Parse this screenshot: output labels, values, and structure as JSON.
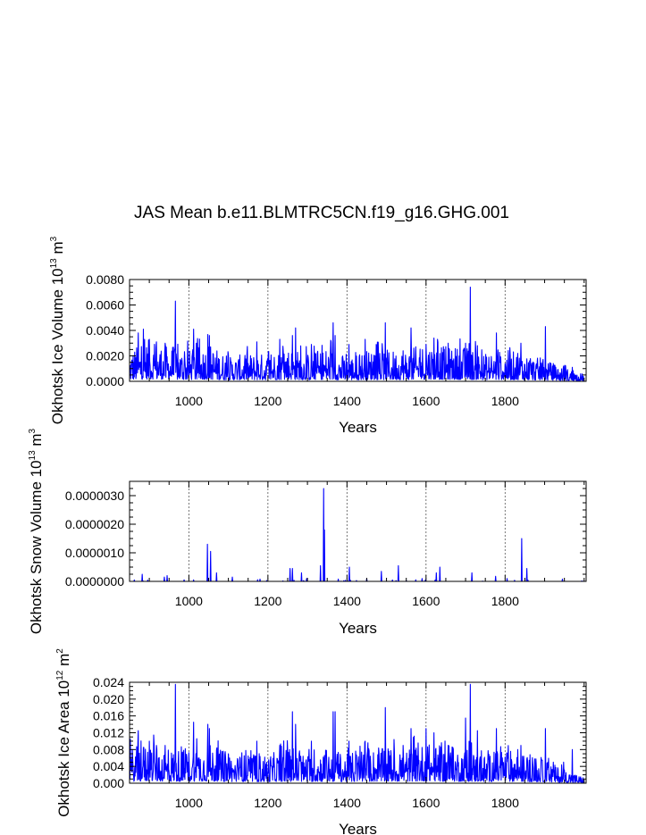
{
  "figure": {
    "title": "JAS Mean b.e11.BLMTRC5CN.f19_g16.GHG.001"
  },
  "chart_data": [
    {
      "type": "line",
      "series_color": "#0000ff",
      "xlabel": "Years",
      "ylabel_text": "Okhotsk Ice Volume 10",
      "ylabel_exp": "13",
      "ylabel_unit": " m",
      "ylabel_unit_exp": "3",
      "xlim": [
        850,
        2005
      ],
      "ylim": [
        0,
        0.008
      ],
      "x_ticks": [
        1000,
        1200,
        1400,
        1600,
        1800
      ],
      "x_tick_labels": [
        "1000",
        "1200",
        "1400",
        "1600",
        "1800"
      ],
      "y_ticks": [
        0,
        0.002,
        0.004,
        0.006,
        0.008
      ],
      "y_tick_labels": [
        "0.0000",
        "0.0020",
        "0.0040",
        "0.0060",
        "0.0080"
      ],
      "grid": "dashed vertical lines at major x ticks",
      "spikes": [
        [
          872,
          0.0038
        ],
        [
          885,
          0.0041
        ],
        [
          900,
          0.0033
        ],
        [
          918,
          0.0031
        ],
        [
          940,
          0.003
        ],
        [
          966,
          0.0063
        ],
        [
          1012,
          0.0041
        ],
        [
          1052,
          0.0036
        ],
        [
          1100,
          0.0021
        ],
        [
          1172,
          0.0031
        ],
        [
          1230,
          0.0033
        ],
        [
          1262,
          0.0036
        ],
        [
          1270,
          0.0042
        ],
        [
          1310,
          0.0029
        ],
        [
          1365,
          0.0046
        ],
        [
          1370,
          0.0036
        ],
        [
          1405,
          0.0029
        ],
        [
          1446,
          0.0033
        ],
        [
          1497,
          0.0046
        ],
        [
          1542,
          0.0024
        ],
        [
          1562,
          0.0042
        ],
        [
          1600,
          0.0029
        ],
        [
          1620,
          0.0034
        ],
        [
          1656,
          0.003
        ],
        [
          1700,
          0.003
        ],
        [
          1712,
          0.0074
        ],
        [
          1730,
          0.0028
        ],
        [
          1778,
          0.0038
        ],
        [
          1832,
          0.0022
        ],
        [
          1840,
          0.003
        ],
        [
          1902,
          0.0043
        ],
        [
          1922,
          0.0014
        ],
        [
          1948,
          0.0012
        ],
        [
          1970,
          0.0011
        ]
      ],
      "baseline": [
        [
          850,
          0.0009
        ],
        [
          900,
          0.0012
        ],
        [
          950,
          0.001
        ],
        [
          1000,
          0.0009
        ],
        [
          1050,
          0.0011
        ],
        [
          1100,
          0.0007
        ],
        [
          1150,
          0.0008
        ],
        [
          1200,
          0.0008
        ],
        [
          1250,
          0.001
        ],
        [
          1300,
          0.0008
        ],
        [
          1350,
          0.001
        ],
        [
          1400,
          0.0007
        ],
        [
          1450,
          0.0009
        ],
        [
          1500,
          0.0009
        ],
        [
          1550,
          0.0009
        ],
        [
          1600,
          0.0011
        ],
        [
          1650,
          0.001
        ],
        [
          1700,
          0.001
        ],
        [
          1750,
          0.0008
        ],
        [
          1800,
          0.0009
        ],
        [
          1850,
          0.0008
        ],
        [
          1900,
          0.0006
        ],
        [
          1950,
          0.0004
        ],
        [
          2000,
          0.0002
        ]
      ]
    },
    {
      "type": "line",
      "series_color": "#0000ff",
      "xlabel": "Years",
      "ylabel_text": "Okhotsk Snow Volume 10",
      "ylabel_exp": "13",
      "ylabel_unit": " m",
      "ylabel_unit_exp": "3",
      "xlim": [
        850,
        2005
      ],
      "ylim": [
        0,
        3.5e-06
      ],
      "x_ticks": [
        1000,
        1200,
        1400,
        1600,
        1800
      ],
      "x_tick_labels": [
        "1000",
        "1200",
        "1400",
        "1600",
        "1800"
      ],
      "y_ticks": [
        0,
        1e-06,
        2e-06,
        3e-06
      ],
      "y_tick_labels": [
        "0.0000000",
        "0.0000010",
        "0.0000020",
        "0.0000030"
      ],
      "grid": "dashed vertical lines at major x ticks",
      "spikes": [
        [
          862,
          5e-08
        ],
        [
          882,
          2.5e-07
        ],
        [
          938,
          1.5e-07
        ],
        [
          945,
          2e-07
        ],
        [
          1047,
          1.3e-06
        ],
        [
          1055,
          1.05e-06
        ],
        [
          1070,
          3e-07
        ],
        [
          1110,
          1.5e-07
        ],
        [
          1180,
          8e-08
        ],
        [
          1256,
          4.5e-07
        ],
        [
          1262,
          4.5e-07
        ],
        [
          1285,
          3e-07
        ],
        [
          1298,
          1e-07
        ],
        [
          1333,
          5.5e-07
        ],
        [
          1341,
          3.25e-06
        ],
        [
          1343,
          1.8e-06
        ],
        [
          1378,
          8e-08
        ],
        [
          1406,
          5e-07
        ],
        [
          1450,
          1e-07
        ],
        [
          1487,
          3.5e-07
        ],
        [
          1530,
          5.5e-07
        ],
        [
          1590,
          1e-07
        ],
        [
          1626,
          3e-07
        ],
        [
          1635,
          5e-07
        ],
        [
          1716,
          3e-07
        ],
        [
          1776,
          1.8e-07
        ],
        [
          1805,
          1e-07
        ],
        [
          1842,
          1.5e-06
        ],
        [
          1855,
          4.5e-07
        ],
        [
          1945,
          8e-08
        ]
      ],
      "baseline": [
        [
          850,
          0
        ],
        [
          2005,
          0
        ]
      ]
    },
    {
      "type": "line",
      "series_color": "#0000ff",
      "xlabel": "Years",
      "ylabel_text": "Okhotsk Ice Area 10",
      "ylabel_exp": "12",
      "ylabel_unit": " m",
      "ylabel_unit_exp": "2",
      "xlim": [
        850,
        2005
      ],
      "ylim": [
        0,
        0.024
      ],
      "x_ticks": [
        1000,
        1200,
        1400,
        1600,
        1800
      ],
      "x_tick_labels": [
        "1000",
        "1200",
        "1400",
        "1600",
        "1800"
      ],
      "y_ticks": [
        0,
        0.004,
        0.008,
        0.012,
        0.016,
        0.02,
        0.024
      ],
      "y_tick_labels": [
        "0.000",
        "0.004",
        "0.008",
        "0.012",
        "0.016",
        "0.020",
        "0.024"
      ],
      "grid": "dashed vertical lines at major x ticks",
      "spikes": [
        [
          872,
          0.0125
        ],
        [
          885,
          0.0085
        ],
        [
          900,
          0.01
        ],
        [
          918,
          0.009
        ],
        [
          940,
          0.009
        ],
        [
          966,
          0.0235
        ],
        [
          1012,
          0.0145
        ],
        [
          1048,
          0.014
        ],
        [
          1052,
          0.013
        ],
        [
          1100,
          0.007
        ],
        [
          1172,
          0.01
        ],
        [
          1230,
          0.009
        ],
        [
          1262,
          0.017
        ],
        [
          1270,
          0.014
        ],
        [
          1310,
          0.01
        ],
        [
          1365,
          0.017
        ],
        [
          1370,
          0.017
        ],
        [
          1405,
          0.01
        ],
        [
          1446,
          0.01
        ],
        [
          1497,
          0.018
        ],
        [
          1542,
          0.009
        ],
        [
          1562,
          0.013
        ],
        [
          1600,
          0.013
        ],
        [
          1620,
          0.012
        ],
        [
          1656,
          0.009
        ],
        [
          1700,
          0.0155
        ],
        [
          1712,
          0.0235
        ],
        [
          1730,
          0.0125
        ],
        [
          1778,
          0.013
        ],
        [
          1832,
          0.008
        ],
        [
          1840,
          0.009
        ],
        [
          1902,
          0.013
        ],
        [
          1922,
          0.005
        ],
        [
          1948,
          0.005
        ],
        [
          1970,
          0.008
        ]
      ],
      "baseline": [
        [
          850,
          0.003
        ],
        [
          900,
          0.0035
        ],
        [
          950,
          0.003
        ],
        [
          1000,
          0.003
        ],
        [
          1050,
          0.0035
        ],
        [
          1100,
          0.0025
        ],
        [
          1150,
          0.0025
        ],
        [
          1200,
          0.0025
        ],
        [
          1250,
          0.003
        ],
        [
          1300,
          0.0025
        ],
        [
          1350,
          0.003
        ],
        [
          1400,
          0.0025
        ],
        [
          1450,
          0.003
        ],
        [
          1500,
          0.003
        ],
        [
          1550,
          0.003
        ],
        [
          1600,
          0.0035
        ],
        [
          1650,
          0.003
        ],
        [
          1700,
          0.003
        ],
        [
          1750,
          0.0025
        ],
        [
          1800,
          0.003
        ],
        [
          1850,
          0.0025
        ],
        [
          1900,
          0.002
        ],
        [
          1950,
          0.0012
        ],
        [
          2000,
          0.0005
        ]
      ]
    }
  ]
}
